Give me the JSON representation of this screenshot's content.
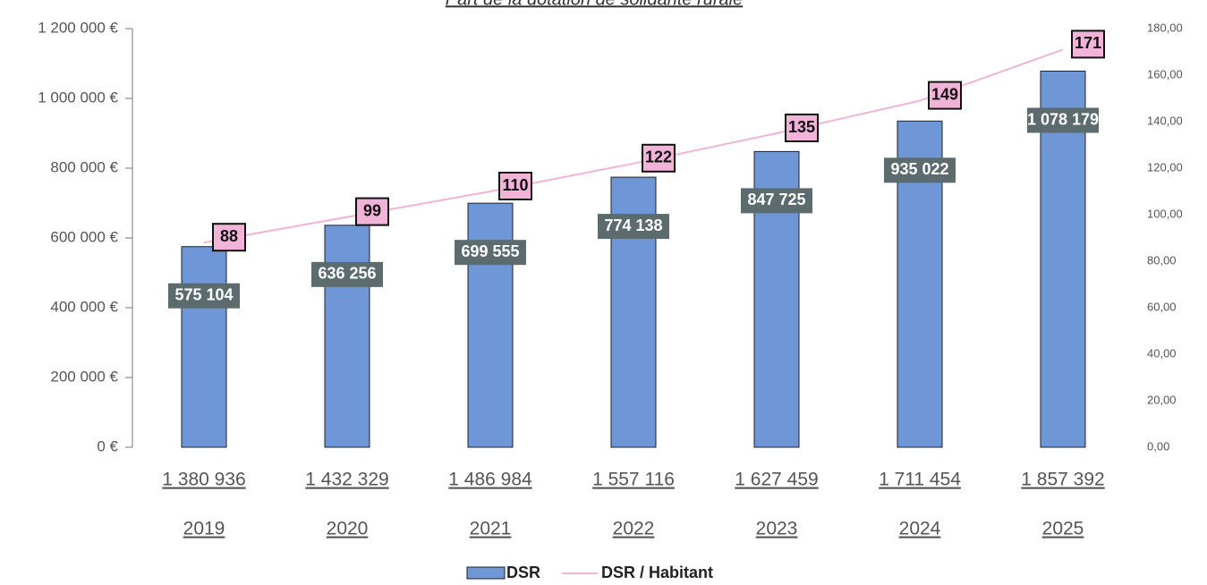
{
  "chart_data": {
    "type": "bar_line",
    "title": "Part de la dotation de solidarité rurale",
    "categories": [
      [
        "1 380 936",
        "2019"
      ],
      [
        "1 432 329",
        "2020"
      ],
      [
        "1 486 984",
        "2021"
      ],
      [
        "1 557 116",
        "2022"
      ],
      [
        "1 627 459",
        "2023"
      ],
      [
        "1 711 454",
        "2024"
      ],
      [
        "1 857 392",
        "2025"
      ]
    ],
    "series": [
      {
        "name": "DSR",
        "type": "bar",
        "color": "#6f97d8",
        "values": [
          575104,
          636256,
          699555,
          774138,
          847725,
          935022,
          1078179
        ],
        "value_labels": [
          "575 104",
          "636 256",
          "699 555",
          "774 138",
          "847 725",
          "935 022",
          "1 078 179"
        ]
      },
      {
        "name": "DSR / Habitant",
        "type": "line",
        "axis": "y2",
        "color": "#f2b3d9",
        "values": [
          88,
          99,
          110,
          122,
          135,
          149,
          171
        ]
      }
    ],
    "ylim": [
      0,
      1200000
    ],
    "yticks": [
      {
        "value": 0,
        "label": "0 €"
      },
      {
        "value": 200000,
        "label": "200 000 €"
      },
      {
        "value": 400000,
        "label": "400 000 €"
      },
      {
        "value": 600000,
        "label": "600 000 €"
      },
      {
        "value": 800000,
        "label": "800 000 €"
      },
      {
        "value": 1000000,
        "label": "1 000 000 €"
      },
      {
        "value": 1200000,
        "label": "1 200 000 €"
      }
    ],
    "y2lim": [
      0,
      180
    ],
    "y2ticks": [
      {
        "value": 0,
        "label": "0,00"
      },
      {
        "value": 20,
        "label": "20,00"
      },
      {
        "value": 40,
        "label": "40,00"
      },
      {
        "value": 60,
        "label": "60,00"
      },
      {
        "value": 80,
        "label": "80,00"
      },
      {
        "value": 100,
        "label": "100,00"
      },
      {
        "value": 120,
        "label": "120,00"
      },
      {
        "value": 140,
        "label": "140,00"
      },
      {
        "value": 160,
        "label": "160,00"
      },
      {
        "value": 180,
        "label": "180,00"
      }
    ],
    "legend": "bottom"
  }
}
